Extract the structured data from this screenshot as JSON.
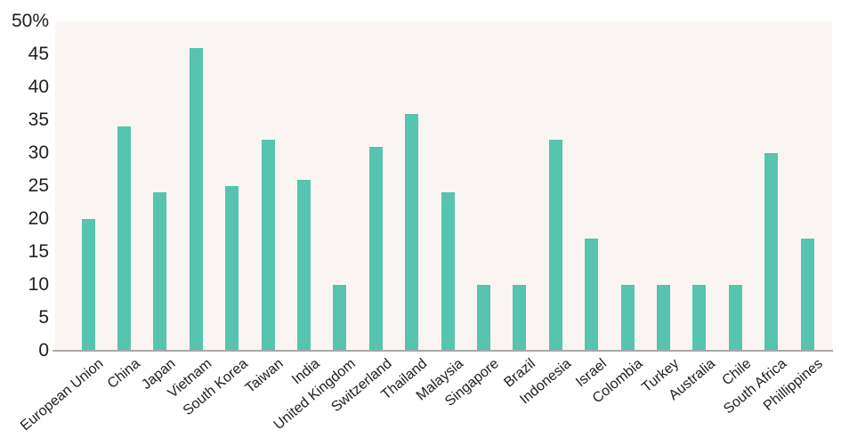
{
  "chart_data": {
    "type": "bar",
    "title": "",
    "xlabel": "",
    "ylabel": "",
    "categories": [
      "European Union",
      "China",
      "Japan",
      "Vietnam",
      "South Korea",
      "Taiwan",
      "India",
      "United Kingdom",
      "Switzerland",
      "Thailand",
      "Malaysia",
      "Singapore",
      "Brazil",
      "Indonesia",
      "Israel",
      "Colombia",
      "Turkey",
      "Australia",
      "Chile",
      "South Africa",
      "Phillippines"
    ],
    "values": [
      20,
      34,
      24,
      46,
      25,
      32,
      26,
      10,
      31,
      36,
      24,
      10,
      10,
      32,
      17,
      10,
      10,
      10,
      10,
      30,
      17
    ],
    "ylim": [
      0,
      50
    ],
    "yticks": [
      0,
      5,
      10,
      15,
      20,
      25,
      30,
      35,
      40,
      45,
      50
    ],
    "ytick_labels": [
      "0",
      "5",
      "10",
      "15",
      "20",
      "25",
      "30",
      "35",
      "40",
      "45",
      "50%"
    ],
    "grid": false,
    "legend_position": "none",
    "colors": {
      "bar": "#56C4AE",
      "plot_background": "#FAF5F2",
      "axis_line": "#A9A9A9",
      "text": "#202020",
      "page_background": "#FFFFFF"
    }
  }
}
